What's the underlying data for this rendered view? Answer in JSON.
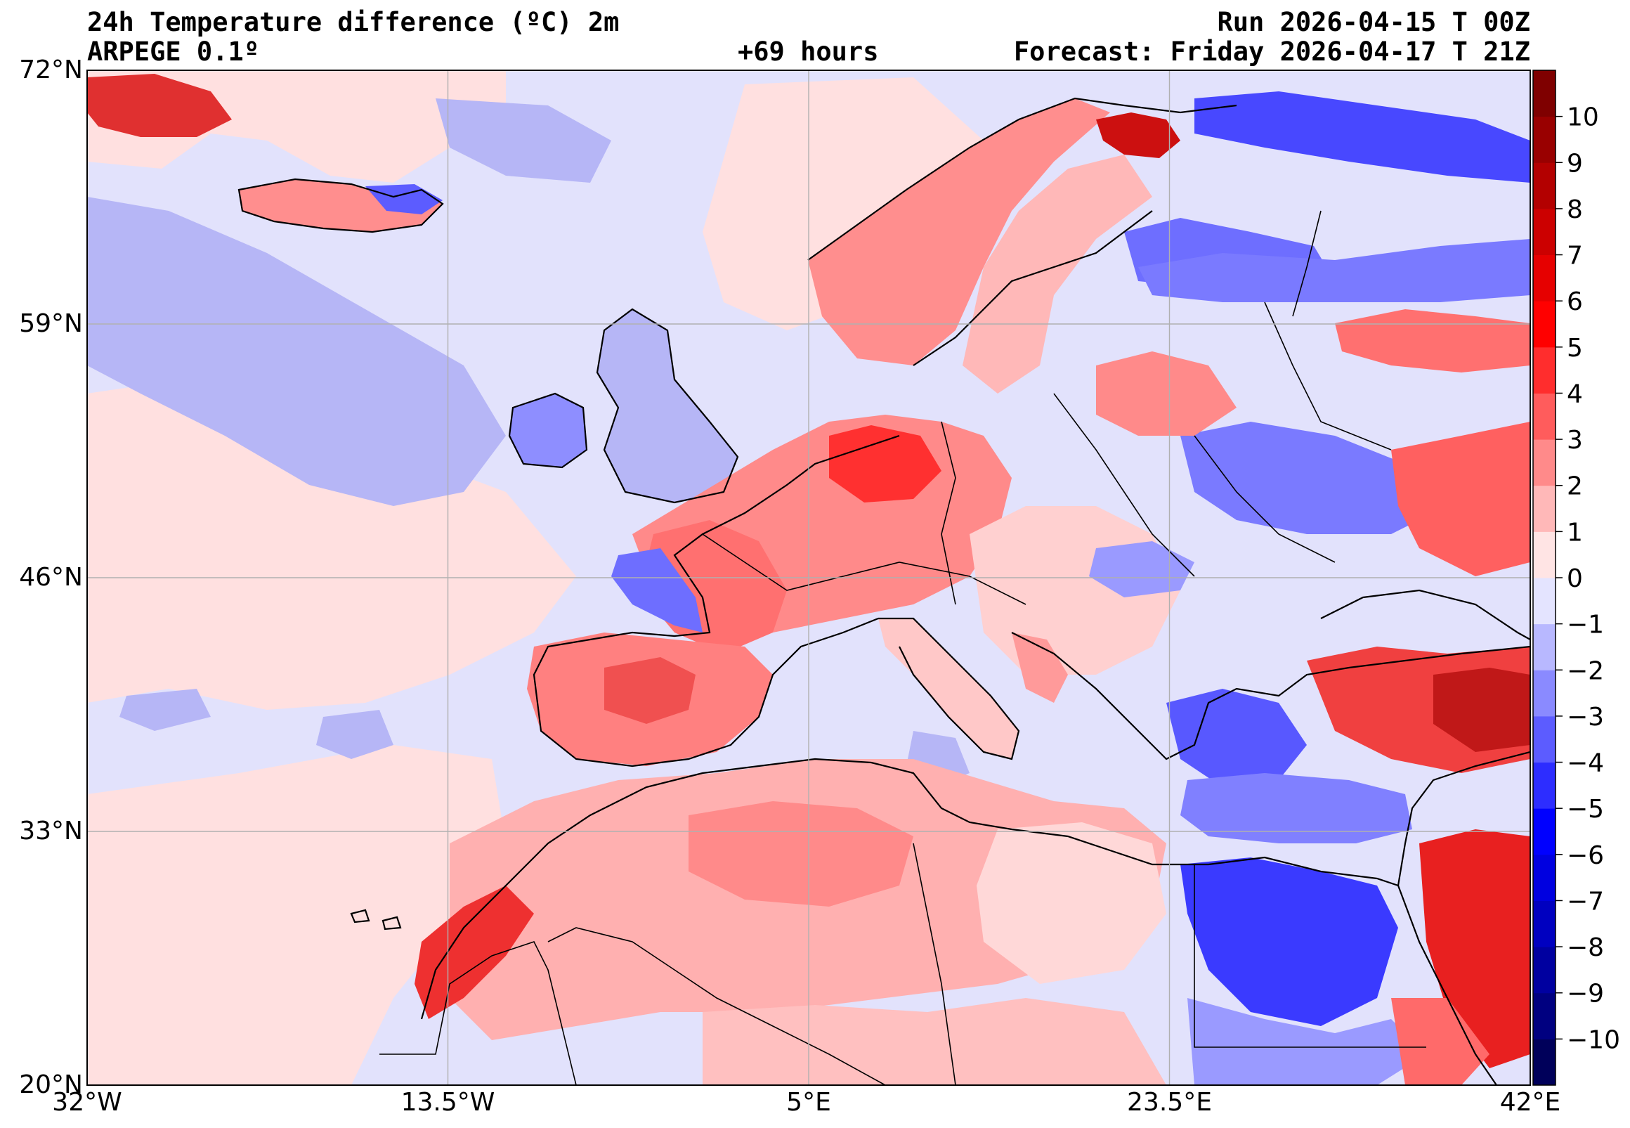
{
  "header": {
    "title": "24h Temperature difference (ºC) 2m",
    "model": "ARPEGE 0.1º",
    "lead_time": "+69 hours",
    "run": "Run 2026-04-15 T 00Z",
    "valid": "Forecast: Friday 2026-04-17 T 21Z"
  },
  "map": {
    "lon_range": [
      -32,
      42
    ],
    "lat_range": [
      20,
      72
    ],
    "lon_ticks": [
      {
        "value": -32,
        "label": "32°W"
      },
      {
        "value": -13.5,
        "label": "13.5°W"
      },
      {
        "value": 5,
        "label": "5°E"
      },
      {
        "value": 23.5,
        "label": "23.5°E"
      },
      {
        "value": 42,
        "label": "42°E"
      }
    ],
    "lat_ticks": [
      {
        "value": 20,
        "label": "20°N"
      },
      {
        "value": 33,
        "label": "33°N"
      },
      {
        "value": 46,
        "label": "46°N"
      },
      {
        "value": 59,
        "label": "59°N"
      },
      {
        "value": 72,
        "label": "72°N"
      }
    ],
    "gridlines": true,
    "variable": "2 m temperature change over 24 h",
    "units": "ºC"
  },
  "colorbar": {
    "min": -11,
    "max": 11,
    "ticks": [
      10,
      9,
      8,
      7,
      6,
      5,
      4,
      3,
      2,
      1,
      0,
      -1,
      -2,
      -3,
      -4,
      -5,
      -6,
      -7,
      -8,
      -9,
      -10
    ],
    "colors": {
      "10": "#7f0000",
      "9": "#990000",
      "8": "#b30000",
      "7": "#cc0000",
      "6": "#e60000",
      "5": "#ff0000",
      "4": "#ff2d2d",
      "3": "#ff5c5c",
      "2": "#ff8a8a",
      "1": "#ffb8b8",
      "0": "#ffe4e4",
      "-1": "#e4e4ff",
      "-2": "#b8b8ff",
      "-3": "#8a8aff",
      "-4": "#5c5cff",
      "-5": "#2d2dff",
      "-6": "#0000ff",
      "-7": "#0000e0",
      "-8": "#0000c0",
      "-9": "#0000a0",
      "-10": "#000080",
      "-11": "#00005a"
    }
  },
  "colors": {
    "ocean_base": "#e2e2fc",
    "land_warm": "#ffd6d6",
    "coast": "#000000",
    "contour": "#8a8a8a",
    "grid": "#b0b0b0"
  }
}
